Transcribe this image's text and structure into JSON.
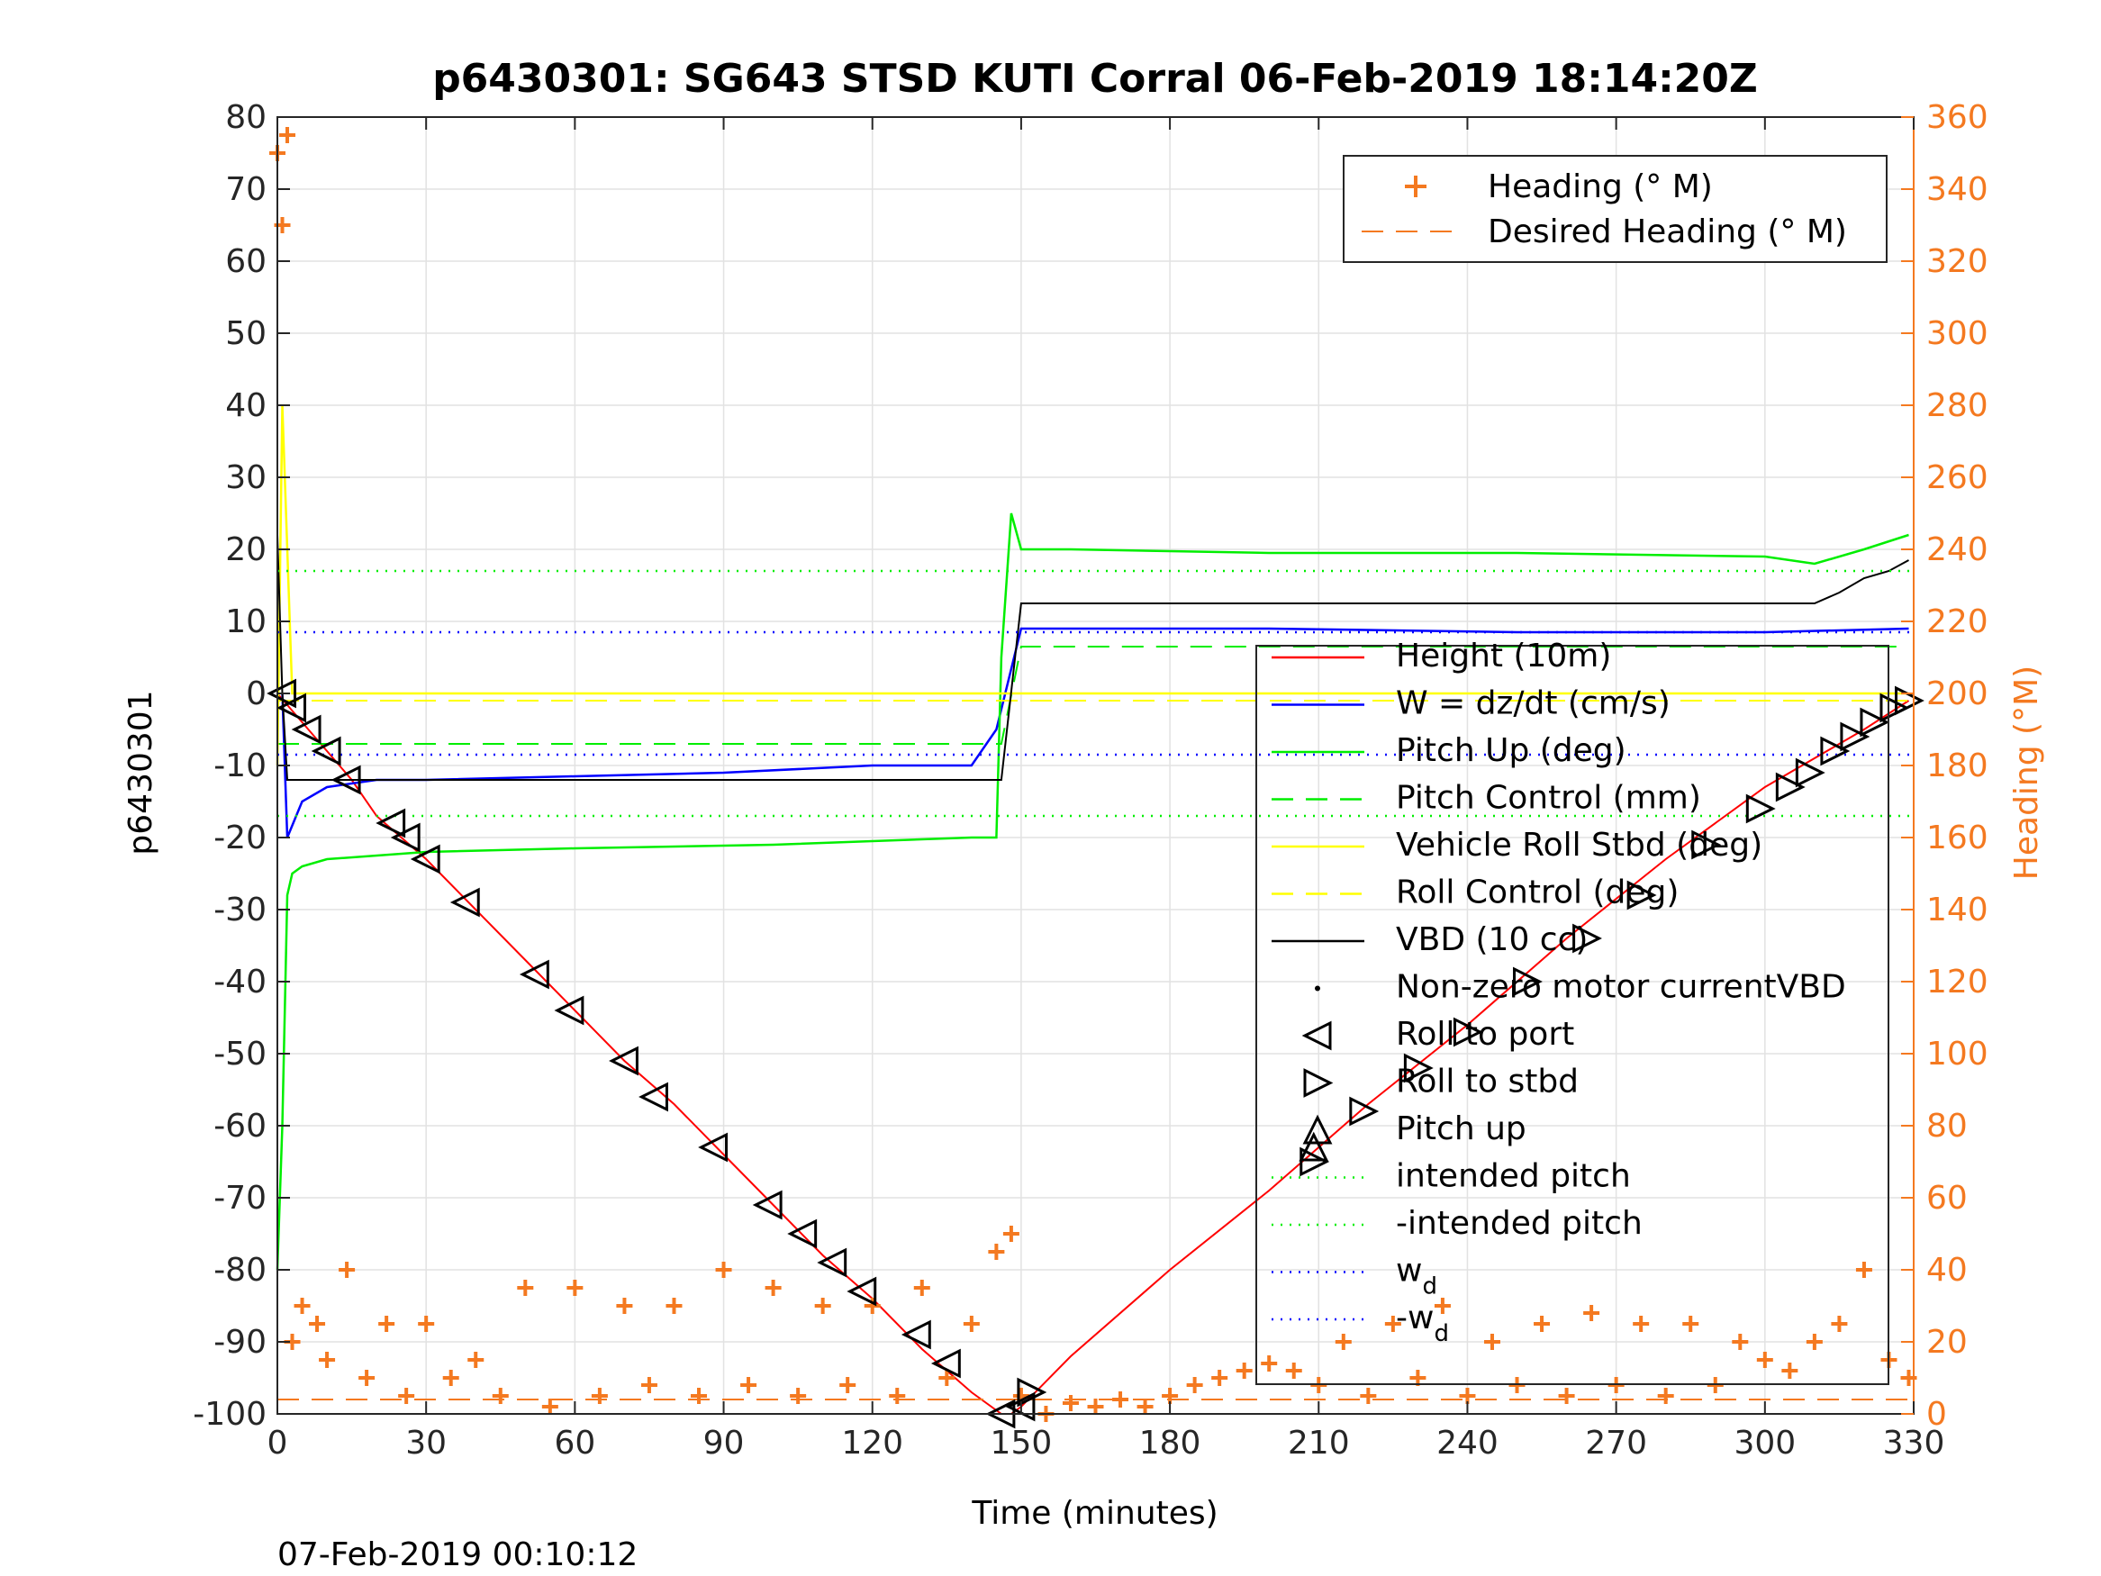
{
  "chart_data": {
    "type": "line",
    "title": "p6430301: SG643 STSD KUTI Corral 06-Feb-2019 18:14:20Z",
    "xlabel": "Time (minutes)",
    "ylabel": "p6430301",
    "y2label": "Heading (°M)",
    "footer": "07-Feb-2019 00:10:12",
    "xlim": [
      0,
      330
    ],
    "ylim": [
      -100,
      80
    ],
    "y2lim": [
      0,
      360
    ],
    "xticks": [
      0,
      30,
      60,
      90,
      120,
      150,
      180,
      210,
      240,
      270,
      300,
      330
    ],
    "xtick_labels": [
      "0",
      "30",
      "60",
      "90",
      "120",
      "150",
      "180",
      "210",
      "240",
      "270",
      "300",
      "330"
    ],
    "yticks": [
      -100,
      -90,
      -80,
      -70,
      -60,
      -50,
      -40,
      -30,
      -20,
      -10,
      0,
      10,
      20,
      30,
      40,
      50,
      60,
      70,
      80
    ],
    "ytick_labels": [
      "-100",
      "-90",
      "-80",
      "-70",
      "-60",
      "-50",
      "-40",
      "-30",
      "-20",
      "-10",
      "0",
      "10",
      "20",
      "30",
      "40",
      "50",
      "60",
      "70",
      "80"
    ],
    "y2ticks": [
      0,
      20,
      40,
      60,
      80,
      100,
      120,
      140,
      160,
      180,
      200,
      220,
      240,
      260,
      280,
      300,
      320,
      340,
      360
    ],
    "y2tick_labels": [
      "0",
      "20",
      "40",
      "60",
      "80",
      "100",
      "120",
      "140",
      "160",
      "180",
      "200",
      "220",
      "240",
      "260",
      "280",
      "300",
      "320",
      "340",
      "360"
    ],
    "grid": true,
    "colors": {
      "heading": "#f47920",
      "height": "#ff0000",
      "w": "#0000ff",
      "pitch": "#00ee00",
      "roll": "#ffff00",
      "vbd": "#000000",
      "right_axis": "#f47920"
    },
    "legend_top": {
      "placement": "top-right",
      "entries": [
        "Heading (° M)",
        "Desired Heading (° M)"
      ]
    },
    "legend_main": {
      "placement": "lower-right",
      "entries": [
        "Height (10m)",
        "W = dz/dt (cm/s)",
        "Pitch Up (deg)",
        "Pitch Control (mm)",
        "Vehicle Roll Stbd (deg)",
        "Roll Control (deg)",
        "VBD (10 cc)",
        "Non-zero motor currentVBD",
        "Roll to port",
        "Roll to stbd",
        "Pitch up",
        "intended pitch",
        "-intended pitch",
        "w",
        "-w"
      ],
      "subscript": "d"
    },
    "series": [
      {
        "name": "Height (10m)",
        "axis": "left",
        "x": [
          0,
          5,
          10,
          15,
          20,
          30,
          40,
          50,
          60,
          70,
          80,
          90,
          100,
          110,
          120,
          130,
          140,
          146,
          148,
          150,
          160,
          180,
          200,
          210,
          220,
          240,
          260,
          280,
          300,
          320,
          329
        ],
        "y": [
          0,
          -4,
          -8,
          -12,
          -17,
          -23,
          -30,
          -37,
          -44,
          -51,
          -57,
          -64,
          -71,
          -78,
          -84,
          -91,
          -97,
          -100,
          -100,
          -99,
          -92,
          -80,
          -69,
          -63,
          -57,
          -46,
          -34,
          -23,
          -13,
          -5,
          -1
        ]
      },
      {
        "name": "W = dz/dt (cm/s)",
        "axis": "left",
        "x": [
          1,
          2,
          5,
          10,
          20,
          30,
          60,
          90,
          120,
          140,
          145,
          150,
          160,
          200,
          250,
          300,
          329
        ],
        "y": [
          0,
          -20,
          -15,
          -13,
          -12,
          -12,
          -11.5,
          -11,
          -10,
          -10,
          -5,
          9,
          9,
          9,
          8.5,
          8.5,
          9
        ]
      },
      {
        "name": "Pitch Up (deg)",
        "axis": "left",
        "x": [
          0,
          1,
          2,
          3,
          5,
          10,
          30,
          60,
          100,
          140,
          145,
          146,
          148,
          150,
          160,
          200,
          250,
          300,
          310,
          320,
          329
        ],
        "y": [
          -80,
          -60,
          -28,
          -25,
          -24,
          -23,
          -22,
          -21.5,
          -21,
          -20,
          -20,
          5,
          25,
          20,
          20,
          19.5,
          19.5,
          19,
          18,
          20,
          22
        ]
      },
      {
        "name": "Pitch Control (mm)",
        "axis": "left",
        "x": [
          0,
          146,
          150,
          329
        ],
        "y": [
          -7,
          -7,
          6.5,
          6.5
        ]
      },
      {
        "name": "Vehicle Roll Stbd (deg)",
        "axis": "left",
        "x": [
          0,
          1,
          3,
          6,
          20,
          60,
          100,
          140,
          147,
          150,
          200,
          250,
          300,
          329
        ],
        "y": [
          -10,
          40,
          0,
          0,
          0,
          0,
          0,
          0,
          0,
          0,
          0,
          0,
          0,
          0
        ]
      },
      {
        "name": "Roll Control (deg)",
        "axis": "left",
        "x": [
          0,
          329
        ],
        "y": [
          -1,
          -1
        ]
      },
      {
        "name": "VBD (10 cc)",
        "axis": "left",
        "x": [
          0,
          1,
          2,
          146,
          150,
          310,
          315,
          320,
          325,
          329
        ],
        "y": [
          22,
          0,
          -12,
          -12,
          12.5,
          12.5,
          14,
          16,
          17,
          18.5
        ]
      },
      {
        "name": "intended pitch",
        "axis": "left",
        "x": [
          0,
          330
        ],
        "y": [
          17,
          17
        ]
      },
      {
        "name": "-intended pitch",
        "axis": "left",
        "x": [
          0,
          330
        ],
        "y": [
          -17,
          -17
        ]
      },
      {
        "name": "w",
        "axis": "left",
        "x": [
          0,
          330
        ],
        "y": [
          8.5,
          8.5
        ]
      },
      {
        "name": "-w",
        "axis": "left",
        "x": [
          0,
          330
        ],
        "y": [
          -8.5,
          -8.5
        ]
      },
      {
        "name": "Heading (° M)",
        "axis": "right",
        "x": [
          0,
          1,
          2,
          3,
          5,
          8,
          10,
          14,
          18,
          22,
          26,
          30,
          35,
          40,
          45,
          50,
          55,
          60,
          65,
          70,
          75,
          80,
          85,
          90,
          95,
          100,
          105,
          110,
          115,
          120,
          125,
          130,
          135,
          140,
          145,
          148,
          150,
          155,
          160,
          165,
          170,
          175,
          180,
          185,
          190,
          195,
          200,
          205,
          210,
          215,
          220,
          225,
          230,
          235,
          240,
          245,
          250,
          255,
          260,
          265,
          270,
          275,
          280,
          285,
          290,
          295,
          300,
          305,
          310,
          315,
          320,
          325,
          329
        ],
        "y": [
          350,
          330,
          355,
          20,
          30,
          25,
          15,
          40,
          10,
          25,
          5,
          25,
          10,
          15,
          5,
          35,
          2,
          35,
          5,
          30,
          8,
          30,
          5,
          40,
          8,
          35,
          5,
          30,
          8,
          30,
          5,
          35,
          10,
          25,
          45,
          50,
          5,
          0,
          3,
          2,
          4,
          2,
          5,
          8,
          10,
          12,
          14,
          12,
          8,
          20,
          5,
          25,
          10,
          30,
          5,
          20,
          8,
          25,
          5,
          28,
          8,
          25,
          5,
          25,
          8,
          20,
          15,
          12,
          20,
          25,
          40,
          15,
          10
        ]
      },
      {
        "name": "Desired Heading (° M)",
        "axis": "right",
        "x": [
          0,
          330
        ],
        "y": [
          4,
          4
        ]
      }
    ],
    "markers": {
      "roll_to_port": {
        "x": [
          1,
          3,
          6,
          10,
          14,
          23,
          26,
          30,
          38,
          52,
          59,
          70,
          76,
          88,
          99,
          106,
          112,
          118,
          129,
          135,
          146,
          150
        ],
        "y": [
          0,
          -2,
          -5,
          -8,
          -12,
          -18,
          -20,
          -23,
          -29,
          -39,
          -44,
          -51,
          -56,
          -63,
          -71,
          -75,
          -79,
          -83,
          -89,
          -93,
          -100,
          -99
        ]
      },
      "roll_to_stbd": {
        "x": [
          152,
          209,
          219,
          230,
          240,
          252,
          264,
          275,
          288,
          299,
          305,
          309,
          314,
          318,
          322,
          326,
          329
        ],
        "y": [
          -97,
          -65,
          -58,
          -52,
          -47,
          -40,
          -34,
          -28,
          -21,
          -16,
          -13,
          -11,
          -8,
          -6,
          -4,
          -2,
          -1
        ]
      },
      "pitch_up": {
        "x": [
          209
        ],
        "y": [
          -63
        ]
      }
    }
  }
}
